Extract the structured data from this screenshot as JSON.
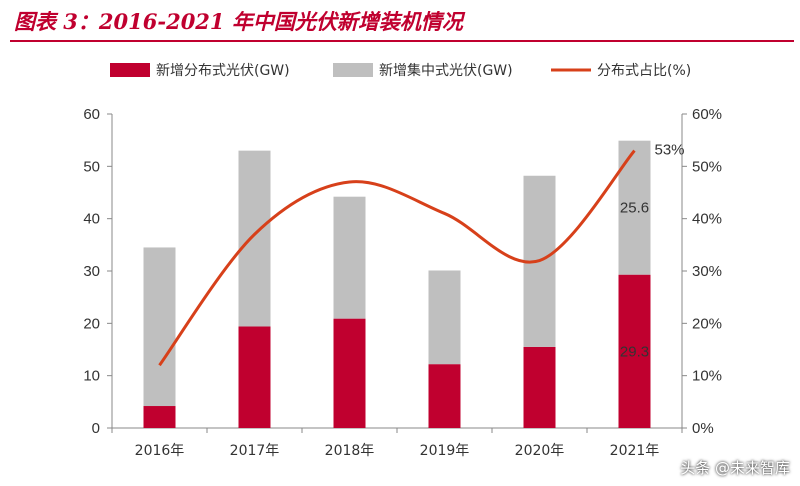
{
  "title": "图表 3：2016-2021 年中国光伏新增装机情况",
  "watermark": "头条 @未来智库",
  "chart_data": {
    "type": "bar",
    "stacked": true,
    "categories": [
      "2016年",
      "2017年",
      "2018年",
      "2019年",
      "2020年",
      "2021年"
    ],
    "series": [
      {
        "name": "新增分布式光伏(GW)",
        "type": "bar",
        "color": "#c0002f",
        "axis": "left",
        "values": [
          4.2,
          19.4,
          20.9,
          12.2,
          15.5,
          29.3
        ]
      },
      {
        "name": "新增集中式光伏(GW)",
        "type": "bar",
        "color": "#bfbfbf",
        "axis": "left",
        "values": [
          30.3,
          33.6,
          23.3,
          17.9,
          32.7,
          25.6
        ]
      },
      {
        "name": "分布式占比(%)",
        "type": "line",
        "color": "#d7401a",
        "axis": "right",
        "values": [
          12,
          37,
          47,
          41,
          32,
          53
        ]
      }
    ],
    "ylim_left": [
      0,
      60
    ],
    "yticks_left": [
      "0",
      "10",
      "20",
      "30",
      "40",
      "50",
      "60"
    ],
    "ylim_right": [
      0,
      60
    ],
    "yticks_right": [
      "0%",
      "10%",
      "20%",
      "30%",
      "40%",
      "50%",
      "60%"
    ],
    "annotations": {
      "pct_2021": "53%",
      "centralized_2021": "25.6",
      "distributed_2021": "29.3"
    },
    "legend_position": "top",
    "grid": false
  }
}
